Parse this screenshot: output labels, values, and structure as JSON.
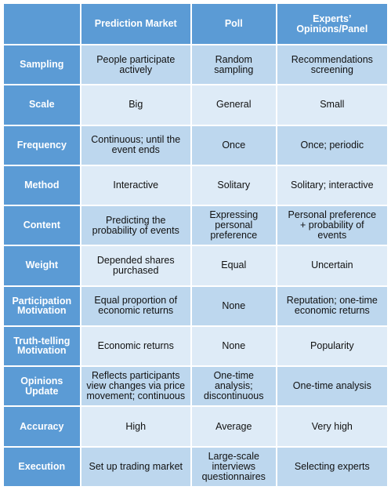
{
  "header": {
    "corner": "",
    "prediction_market": "Prediction Market",
    "poll": "Poll",
    "experts_line1": "Experts’",
    "experts_line2": "Opinions/Panel"
  },
  "rows": [
    {
      "label": [
        "Sampling"
      ],
      "prediction_market": [
        "People participate",
        "actively"
      ],
      "poll": [
        "Random",
        "sampling"
      ],
      "experts": [
        "Recommendations",
        "screening"
      ]
    },
    {
      "label": [
        "Scale"
      ],
      "prediction_market": [
        "Big"
      ],
      "poll": [
        "General"
      ],
      "experts": [
        "Small"
      ]
    },
    {
      "label": [
        "Frequency"
      ],
      "prediction_market": [
        "Continuous; until the",
        "event ends"
      ],
      "poll": [
        "Once"
      ],
      "experts": [
        "Once; periodic"
      ]
    },
    {
      "label": [
        "Method"
      ],
      "prediction_market": [
        "Interactive"
      ],
      "poll": [
        "Solitary"
      ],
      "experts": [
        "Solitary; interactive"
      ]
    },
    {
      "label": [
        "Content"
      ],
      "prediction_market": [
        "Predicting the",
        "probability of events"
      ],
      "poll": [
        "Expressing",
        "personal",
        "preference"
      ],
      "experts": [
        "Personal preference",
        "+ probability of",
        "events"
      ]
    },
    {
      "label": [
        "Weight"
      ],
      "prediction_market": [
        "Depended shares",
        "purchased"
      ],
      "poll": [
        "Equal"
      ],
      "experts": [
        "Uncertain"
      ]
    },
    {
      "label": [
        "Participation",
        "Motivation"
      ],
      "prediction_market": [
        "Equal proportion of",
        "economic returns"
      ],
      "poll": [
        "None"
      ],
      "experts": [
        "Reputation; one-time",
        "economic returns"
      ]
    },
    {
      "label": [
        "Truth-telling",
        "Motivation"
      ],
      "prediction_market": [
        "Economic returns"
      ],
      "poll": [
        "None"
      ],
      "experts": [
        "Popularity"
      ]
    },
    {
      "label": [
        "Opinions",
        "Update"
      ],
      "prediction_market": [
        "Reflects participants",
        "view changes via price",
        "movement; continuous"
      ],
      "poll": [
        "One-time",
        "analysis;",
        "discontinuous"
      ],
      "experts": [
        "One-time analysis"
      ]
    },
    {
      "label": [
        "Accuracy"
      ],
      "prediction_market": [
        "High"
      ],
      "poll": [
        "Average"
      ],
      "experts": [
        "Very high"
      ]
    },
    {
      "label": [
        "Execution"
      ],
      "prediction_market": [
        "Set up trading market"
      ],
      "poll": [
        "Large-scale",
        "interviews",
        "questionnaires"
      ],
      "experts": [
        "Selecting experts"
      ]
    }
  ],
  "colors": {
    "header_blue": "#5b9bd5",
    "row_odd": "#bdd7ee",
    "row_even": "#deebf7"
  }
}
